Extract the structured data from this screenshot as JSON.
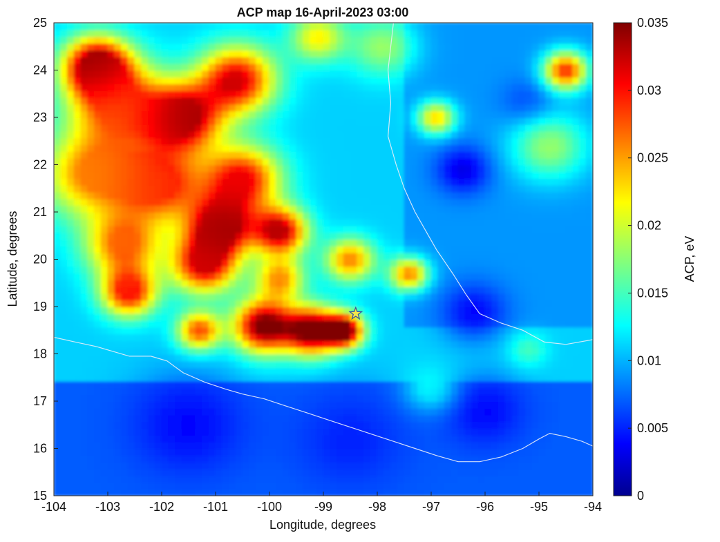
{
  "chart_data": {
    "type": "heatmap",
    "title": "ACP map 16-April-2023 03:00",
    "xlabel": "Longitude, degrees",
    "ylabel": "Latitude, degrees",
    "xlim": [
      -104,
      -94
    ],
    "ylim": [
      15,
      25
    ],
    "x_ticks": [
      "-104",
      "-103",
      "-102",
      "-101",
      "-100",
      "-99",
      "-98",
      "-97",
      "-96",
      "-95",
      "-94"
    ],
    "y_ticks": [
      "15",
      "16",
      "17",
      "18",
      "19",
      "20",
      "21",
      "22",
      "23",
      "24",
      "25"
    ],
    "colorbar": {
      "label": "ACP, eV",
      "range": [
        0,
        0.035
      ],
      "ticks": [
        "0",
        "0.005",
        "0.01",
        "0.015",
        "0.02",
        "0.025",
        "0.03",
        "0.035"
      ],
      "colormap": "jet"
    },
    "grid": false,
    "marker": {
      "type": "star",
      "lon": -98.4,
      "lat": 18.85,
      "color": "#f2e84a"
    },
    "field_blobs": [
      {
        "lon": -103.2,
        "lat": 24.1,
        "value": 0.035,
        "sigma": 0.6
      },
      {
        "lon": -102.8,
        "lat": 23.3,
        "value": 0.028,
        "sigma": 0.9
      },
      {
        "lon": -101.6,
        "lat": 23.0,
        "value": 0.034,
        "sigma": 0.7
      },
      {
        "lon": -100.6,
        "lat": 23.8,
        "value": 0.032,
        "sigma": 0.7
      },
      {
        "lon": -103.3,
        "lat": 21.8,
        "value": 0.026,
        "sigma": 0.9
      },
      {
        "lon": -102.0,
        "lat": 21.6,
        "value": 0.029,
        "sigma": 0.8
      },
      {
        "lon": -100.5,
        "lat": 21.7,
        "value": 0.031,
        "sigma": 0.7
      },
      {
        "lon": -100.9,
        "lat": 20.7,
        "value": 0.034,
        "sigma": 0.6
      },
      {
        "lon": -99.8,
        "lat": 20.6,
        "value": 0.033,
        "sigma": 0.5
      },
      {
        "lon": -102.7,
        "lat": 20.3,
        "value": 0.027,
        "sigma": 0.7
      },
      {
        "lon": -102.6,
        "lat": 19.3,
        "value": 0.03,
        "sigma": 0.5
      },
      {
        "lon": -101.2,
        "lat": 19.9,
        "value": 0.032,
        "sigma": 0.6
      },
      {
        "lon": -100.1,
        "lat": 18.6,
        "value": 0.036,
        "sigma": 0.55
      },
      {
        "lon": -99.2,
        "lat": 18.5,
        "value": 0.036,
        "sigma": 0.5
      },
      {
        "lon": -98.6,
        "lat": 18.5,
        "value": 0.035,
        "sigma": 0.35
      },
      {
        "lon": -101.3,
        "lat": 18.5,
        "value": 0.028,
        "sigma": 0.4
      },
      {
        "lon": -99.8,
        "lat": 19.6,
        "value": 0.025,
        "sigma": 0.45
      },
      {
        "lon": -98.5,
        "lat": 20.0,
        "value": 0.026,
        "sigma": 0.45
      },
      {
        "lon": -97.4,
        "lat": 19.7,
        "value": 0.026,
        "sigma": 0.35
      },
      {
        "lon": -99.1,
        "lat": 24.7,
        "value": 0.022,
        "sigma": 0.5
      },
      {
        "lon": -97.9,
        "lat": 24.5,
        "value": 0.018,
        "sigma": 0.6
      },
      {
        "lon": -96.9,
        "lat": 23.0,
        "value": 0.023,
        "sigma": 0.35
      },
      {
        "lon": -94.5,
        "lat": 24.0,
        "value": 0.029,
        "sigma": 0.4
      },
      {
        "lon": -94.8,
        "lat": 22.4,
        "value": 0.018,
        "sigma": 0.7
      },
      {
        "lon": -95.2,
        "lat": 18.1,
        "value": 0.015,
        "sigma": 0.35
      },
      {
        "lon": -97.0,
        "lat": 17.3,
        "value": 0.013,
        "sigma": 0.5
      },
      {
        "lon": -96.4,
        "lat": 21.9,
        "value": 0.003,
        "sigma": 0.5
      },
      {
        "lon": -96.2,
        "lat": 18.9,
        "value": 0.004,
        "sigma": 0.6
      },
      {
        "lon": -95.2,
        "lat": 23.3,
        "value": 0.006,
        "sigma": 0.5
      },
      {
        "lon": -101.5,
        "lat": 16.5,
        "value": 0.004,
        "sigma": 1.0
      },
      {
        "lon": -98.5,
        "lat": 16.2,
        "value": 0.005,
        "sigma": 1.0
      },
      {
        "lon": -96.0,
        "lat": 16.8,
        "value": 0.004,
        "sigma": 0.7
      }
    ],
    "coastline": [
      [
        -104,
        18.35
      ],
      [
        -103.6,
        18.25
      ],
      [
        -103.2,
        18.15
      ],
      [
        -102.9,
        18.05
      ],
      [
        -102.6,
        17.95
      ],
      [
        -102.2,
        17.95
      ],
      [
        -101.9,
        17.85
      ],
      [
        -101.6,
        17.6
      ],
      [
        -101.2,
        17.4
      ],
      [
        -100.8,
        17.25
      ],
      [
        -100.5,
        17.15
      ],
      [
        -100.1,
        17.05
      ],
      [
        -99.7,
        16.9
      ],
      [
        -99.3,
        16.75
      ],
      [
        -98.9,
        16.6
      ],
      [
        -98.5,
        16.45
      ],
      [
        -98.1,
        16.3
      ],
      [
        -97.7,
        16.15
      ],
      [
        -97.3,
        16.0
      ],
      [
        -96.9,
        15.85
      ],
      [
        -96.5,
        15.72
      ],
      [
        -96.1,
        15.72
      ],
      [
        -95.7,
        15.82
      ],
      [
        -95.3,
        16.0
      ],
      [
        -95.0,
        16.2
      ],
      [
        -94.8,
        16.32
      ],
      [
        -94.5,
        16.25
      ],
      [
        -94.2,
        16.15
      ],
      [
        -94,
        16.05
      ]
    ],
    "coastline_gulf": [
      [
        -97.7,
        25
      ],
      [
        -97.75,
        24.5
      ],
      [
        -97.8,
        24.0
      ],
      [
        -97.75,
        23.3
      ],
      [
        -97.8,
        22.6
      ],
      [
        -97.65,
        22.0
      ],
      [
        -97.5,
        21.5
      ],
      [
        -97.3,
        21.0
      ],
      [
        -97.1,
        20.6
      ],
      [
        -96.9,
        20.2
      ],
      [
        -96.6,
        19.7
      ],
      [
        -96.35,
        19.25
      ],
      [
        -96.1,
        18.85
      ],
      [
        -95.7,
        18.65
      ],
      [
        -95.3,
        18.5
      ],
      [
        -94.9,
        18.25
      ],
      [
        -94.5,
        18.2
      ],
      [
        -94.0,
        18.3
      ]
    ]
  }
}
